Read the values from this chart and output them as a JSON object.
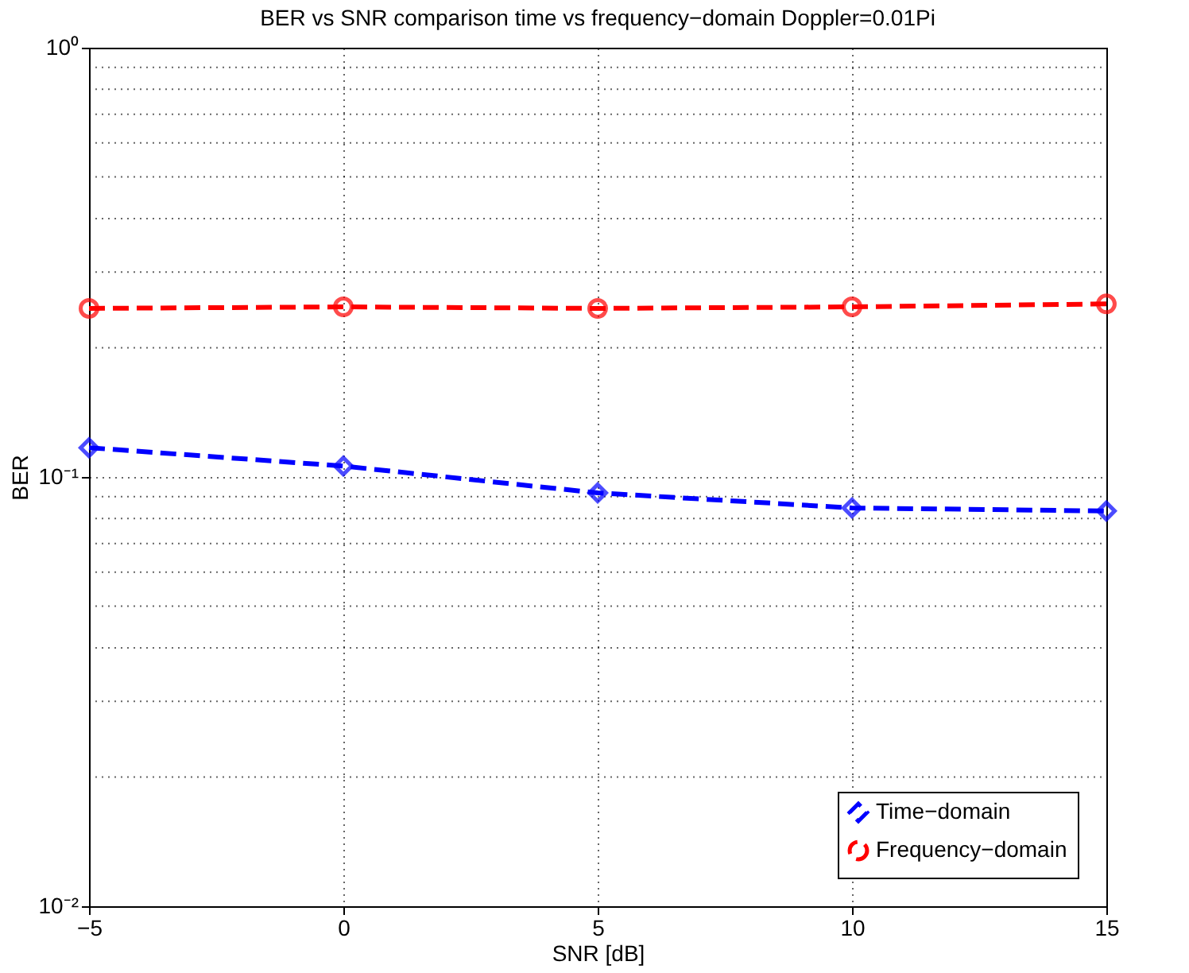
{
  "chart_data": {
    "type": "line",
    "title": "BER vs SNR comparison time vs frequency−domain Doppler=0.01Pi",
    "xlabel": "SNR [dB]",
    "ylabel": "BER",
    "x": [
      -5,
      0,
      5,
      10,
      15
    ],
    "series": [
      {
        "name": "Time−domain",
        "color": "#0000ff",
        "marker": "diamond",
        "values": [
          0.117,
          0.106,
          0.0918,
          0.0847,
          0.0833
        ]
      },
      {
        "name": "Frequency−domain",
        "color": "#ff0000",
        "marker": "circle",
        "values": [
          0.247,
          0.249,
          0.247,
          0.249,
          0.253
        ]
      }
    ],
    "xlim": [
      -5,
      15
    ],
    "xticks": [
      -5,
      0,
      5,
      10,
      15
    ],
    "ylim": [
      0.01,
      1
    ],
    "yticks": [
      {
        "value": 0.01,
        "label": "10⁻²"
      },
      {
        "value": 0.1,
        "label": "10⁻¹"
      },
      {
        "value": 1,
        "label": "10⁰"
      }
    ],
    "log": "y",
    "grid": true,
    "legend": "bottom right",
    "line_style": "dashed"
  }
}
